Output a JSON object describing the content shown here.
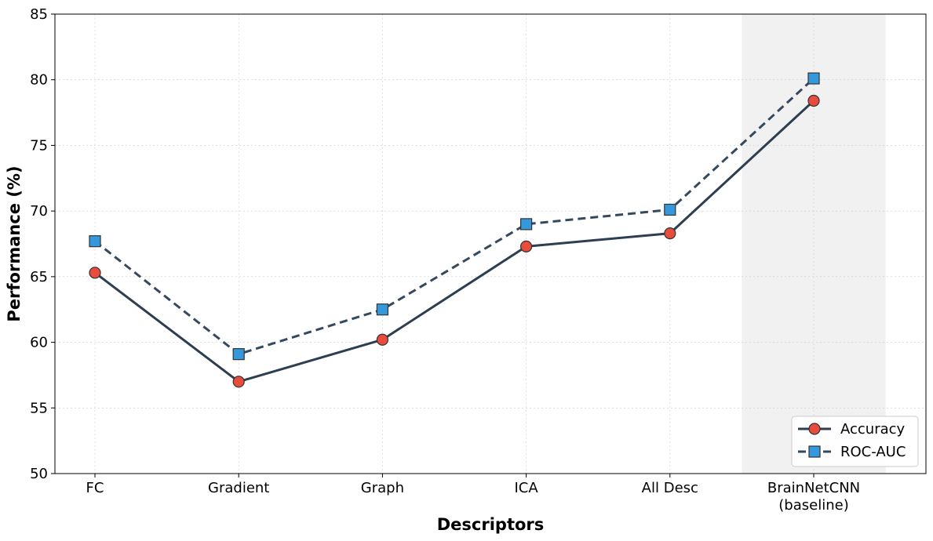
{
  "chart_data": {
    "type": "line",
    "title": "",
    "xlabel": "Descriptors",
    "ylabel": "Performance (%)",
    "categories": [
      [
        "FC"
      ],
      [
        "Gradient"
      ],
      [
        "Graph"
      ],
      [
        "ICA"
      ],
      [
        "All Desc"
      ],
      [
        "BrainNetCNN",
        "(baseline)"
      ]
    ],
    "ylim": [
      50,
      85
    ],
    "yticks": [
      50,
      55,
      60,
      65,
      70,
      75,
      80,
      85
    ],
    "grid": true,
    "highlight_category_index": 5,
    "legend_position": "bottom-right",
    "series": [
      {
        "name": "Accuracy",
        "values": [
          65.3,
          57.0,
          60.2,
          67.3,
          68.3,
          78.4
        ],
        "line_style": "solid",
        "marker": "circle",
        "line_color": "#2c3e50",
        "marker_color": "#e74c3c"
      },
      {
        "name": "ROC-AUC",
        "values": [
          67.7,
          59.1,
          62.5,
          69.0,
          70.1,
          80.1
        ],
        "line_style": "dashed",
        "marker": "square",
        "line_color": "#34495e",
        "marker_color": "#3498db"
      }
    ]
  }
}
